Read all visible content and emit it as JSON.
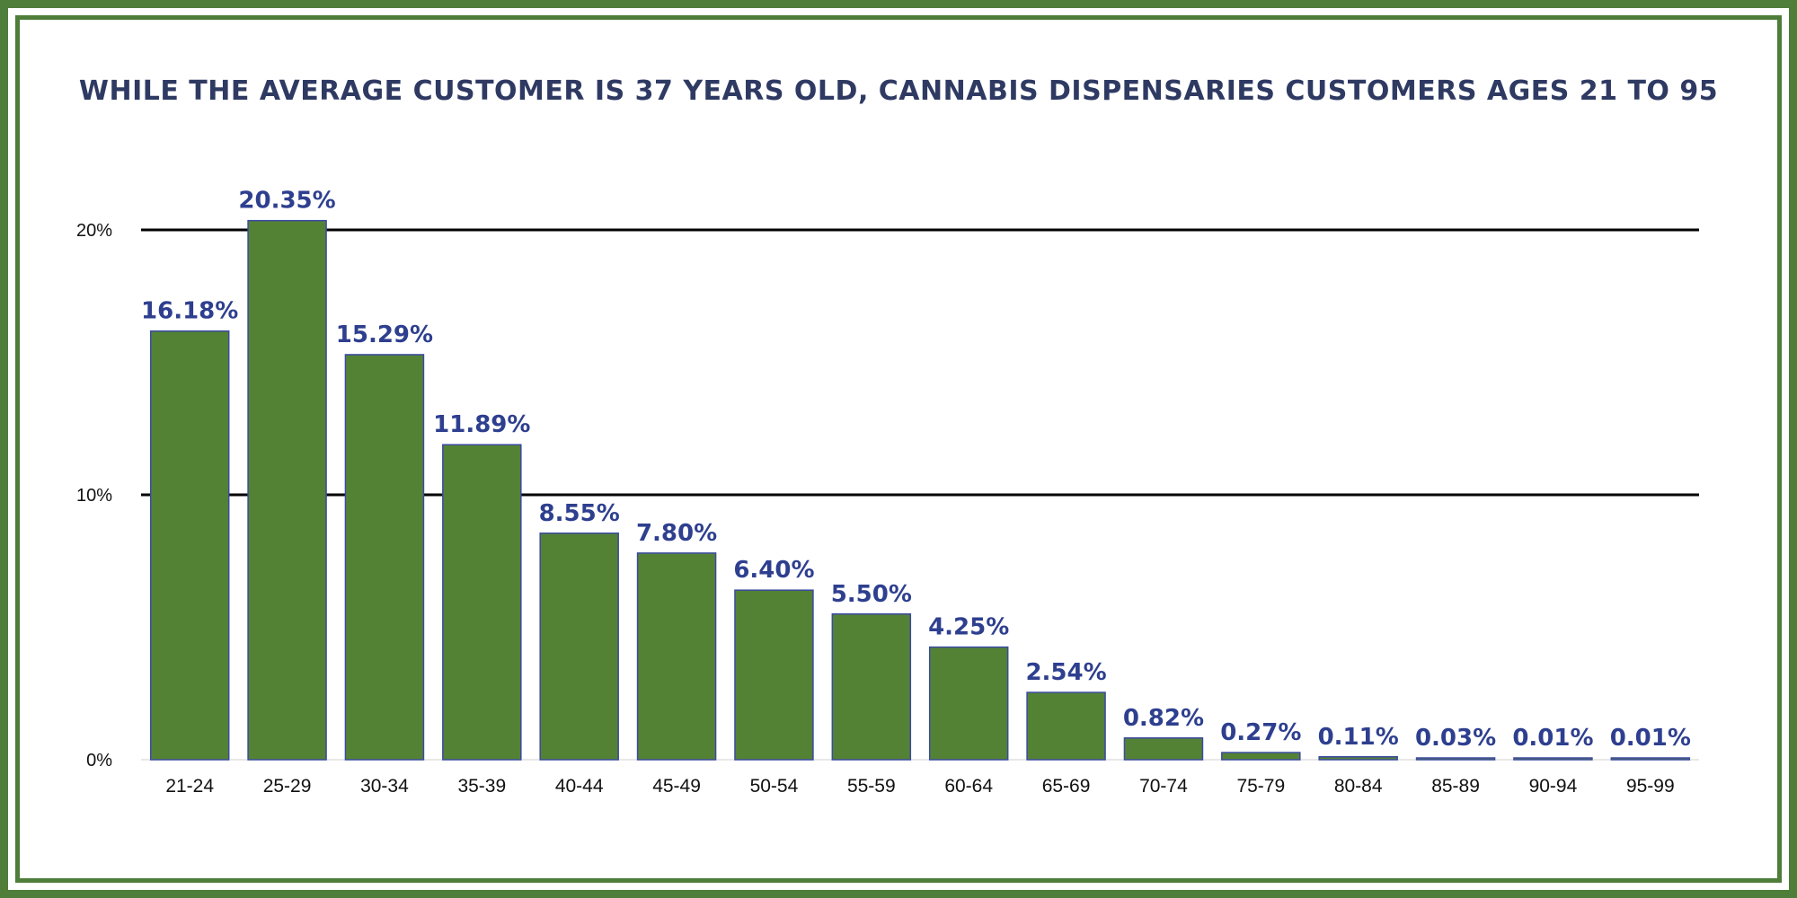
{
  "chart_data": {
    "type": "bar",
    "title": "WHILE THE AVERAGE CUSTOMER IS 37 YEARS OLD, CANNABIS DISPENSARIES CUSTOMERS AGES 21 TO 95",
    "categories": [
      "21-24",
      "25-29",
      "30-34",
      "35-39",
      "40-44",
      "45-49",
      "50-54",
      "55-59",
      "60-64",
      "65-69",
      "70-74",
      "75-79",
      "80-84",
      "85-89",
      "90-94",
      "95-99"
    ],
    "values": [
      16.18,
      20.35,
      15.29,
      11.89,
      8.55,
      7.8,
      6.4,
      5.5,
      4.25,
      2.54,
      0.82,
      0.27,
      0.11,
      0.03,
      0.01,
      0.01
    ],
    "value_labels": [
      "16.18%",
      "20.35%",
      "15.29%",
      "11.89%",
      "8.55%",
      "7.80%",
      "6.40%",
      "5.50%",
      "4.25%",
      "2.54%",
      "0.82%",
      "0.27%",
      "0.11%",
      "0.03%",
      "0.01%",
      "0.01%"
    ],
    "yticks": [
      0,
      10,
      20
    ],
    "ytick_labels": [
      "0%",
      "10%",
      "20%"
    ],
    "ylim": [
      0,
      20
    ],
    "grid": true,
    "xlabel": "",
    "ylabel": "",
    "colors": {
      "bar": "#548235",
      "bar_edge": "#3b4aa0",
      "label": "#2e3f8f",
      "frame": "#4f7d3a",
      "grid": "#000000"
    }
  }
}
